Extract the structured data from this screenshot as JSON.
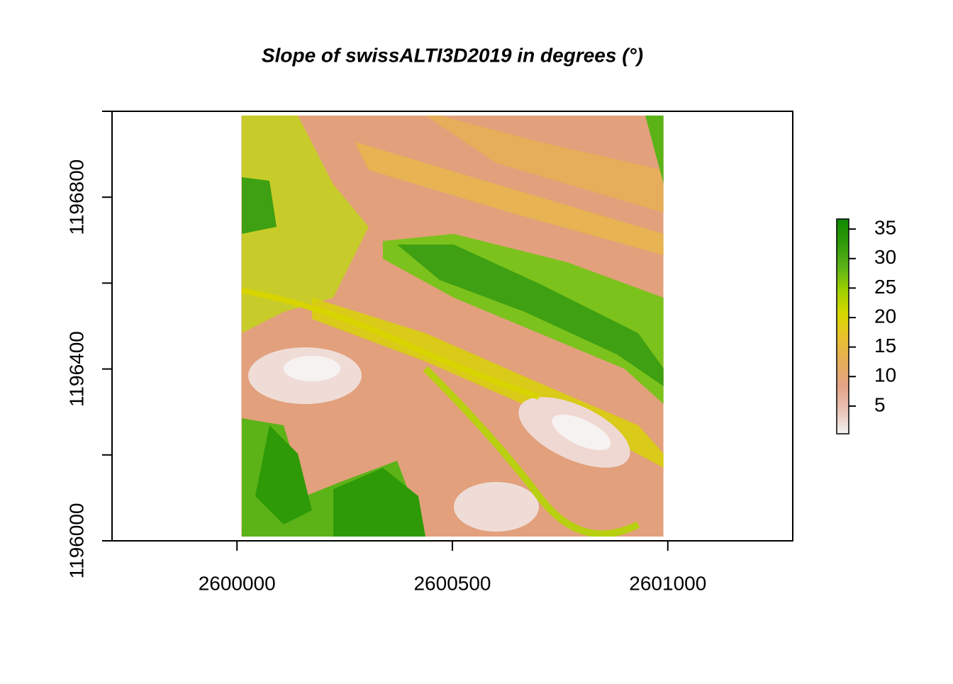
{
  "chart_data": {
    "type": "raster",
    "title": "Slope of swissALTI3D2019 in degrees (°)",
    "xlim": [
      2599710,
      2601290
    ],
    "xticks": [
      2600000,
      2600500,
      2601000
    ],
    "ylim": [
      1196000,
      1197000
    ],
    "yticks": [
      1196000,
      1196400,
      1196800
    ],
    "yminor_ticks": [
      1196200,
      1196600,
      1197000
    ],
    "xextent": [
      2600010,
      2600990
    ],
    "yextent": [
      1196010,
      1196990
    ],
    "colorbar": {
      "zlim": [
        0.3,
        36.7
      ],
      "ticks": [
        5,
        10,
        15,
        20,
        25,
        30,
        35
      ],
      "colors": [
        "#f2f2f2",
        "#e8c2b6",
        "#e3a486",
        "#e6ae5a",
        "#e8c030",
        "#d8d800",
        "#9fd000",
        "#5cb318",
        "#2f9a08",
        "#108a00"
      ]
    }
  }
}
